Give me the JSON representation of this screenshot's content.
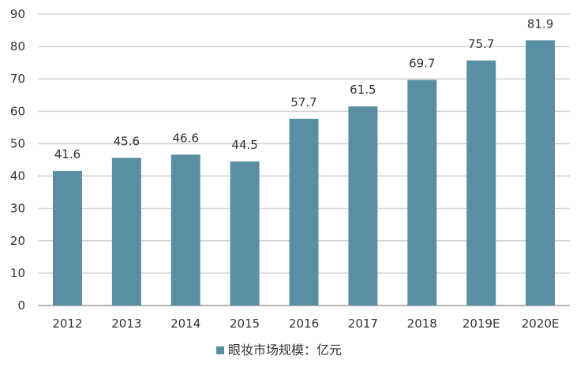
{
  "chart_data": {
    "type": "bar",
    "categories": [
      "2012",
      "2013",
      "2014",
      "2015",
      "2016",
      "2017",
      "2018",
      "2019E",
      "2020E"
    ],
    "series": [
      {
        "name": "眼妆市场规模：亿元",
        "values": [
          41.6,
          45.6,
          46.6,
          44.5,
          57.7,
          61.5,
          69.7,
          75.7,
          81.9
        ],
        "color": "#5a8ea3"
      }
    ],
    "data_labels": [
      "41.6",
      "45.6",
      "46.6",
      "44.5",
      "57.7",
      "61.5",
      "69.7",
      "75.7",
      "81.9"
    ],
    "ylim": [
      0,
      90
    ],
    "yticks": [
      0,
      10,
      20,
      30,
      40,
      50,
      60,
      70,
      80,
      90
    ],
    "grid": true,
    "legend_position": "bottom-center"
  }
}
